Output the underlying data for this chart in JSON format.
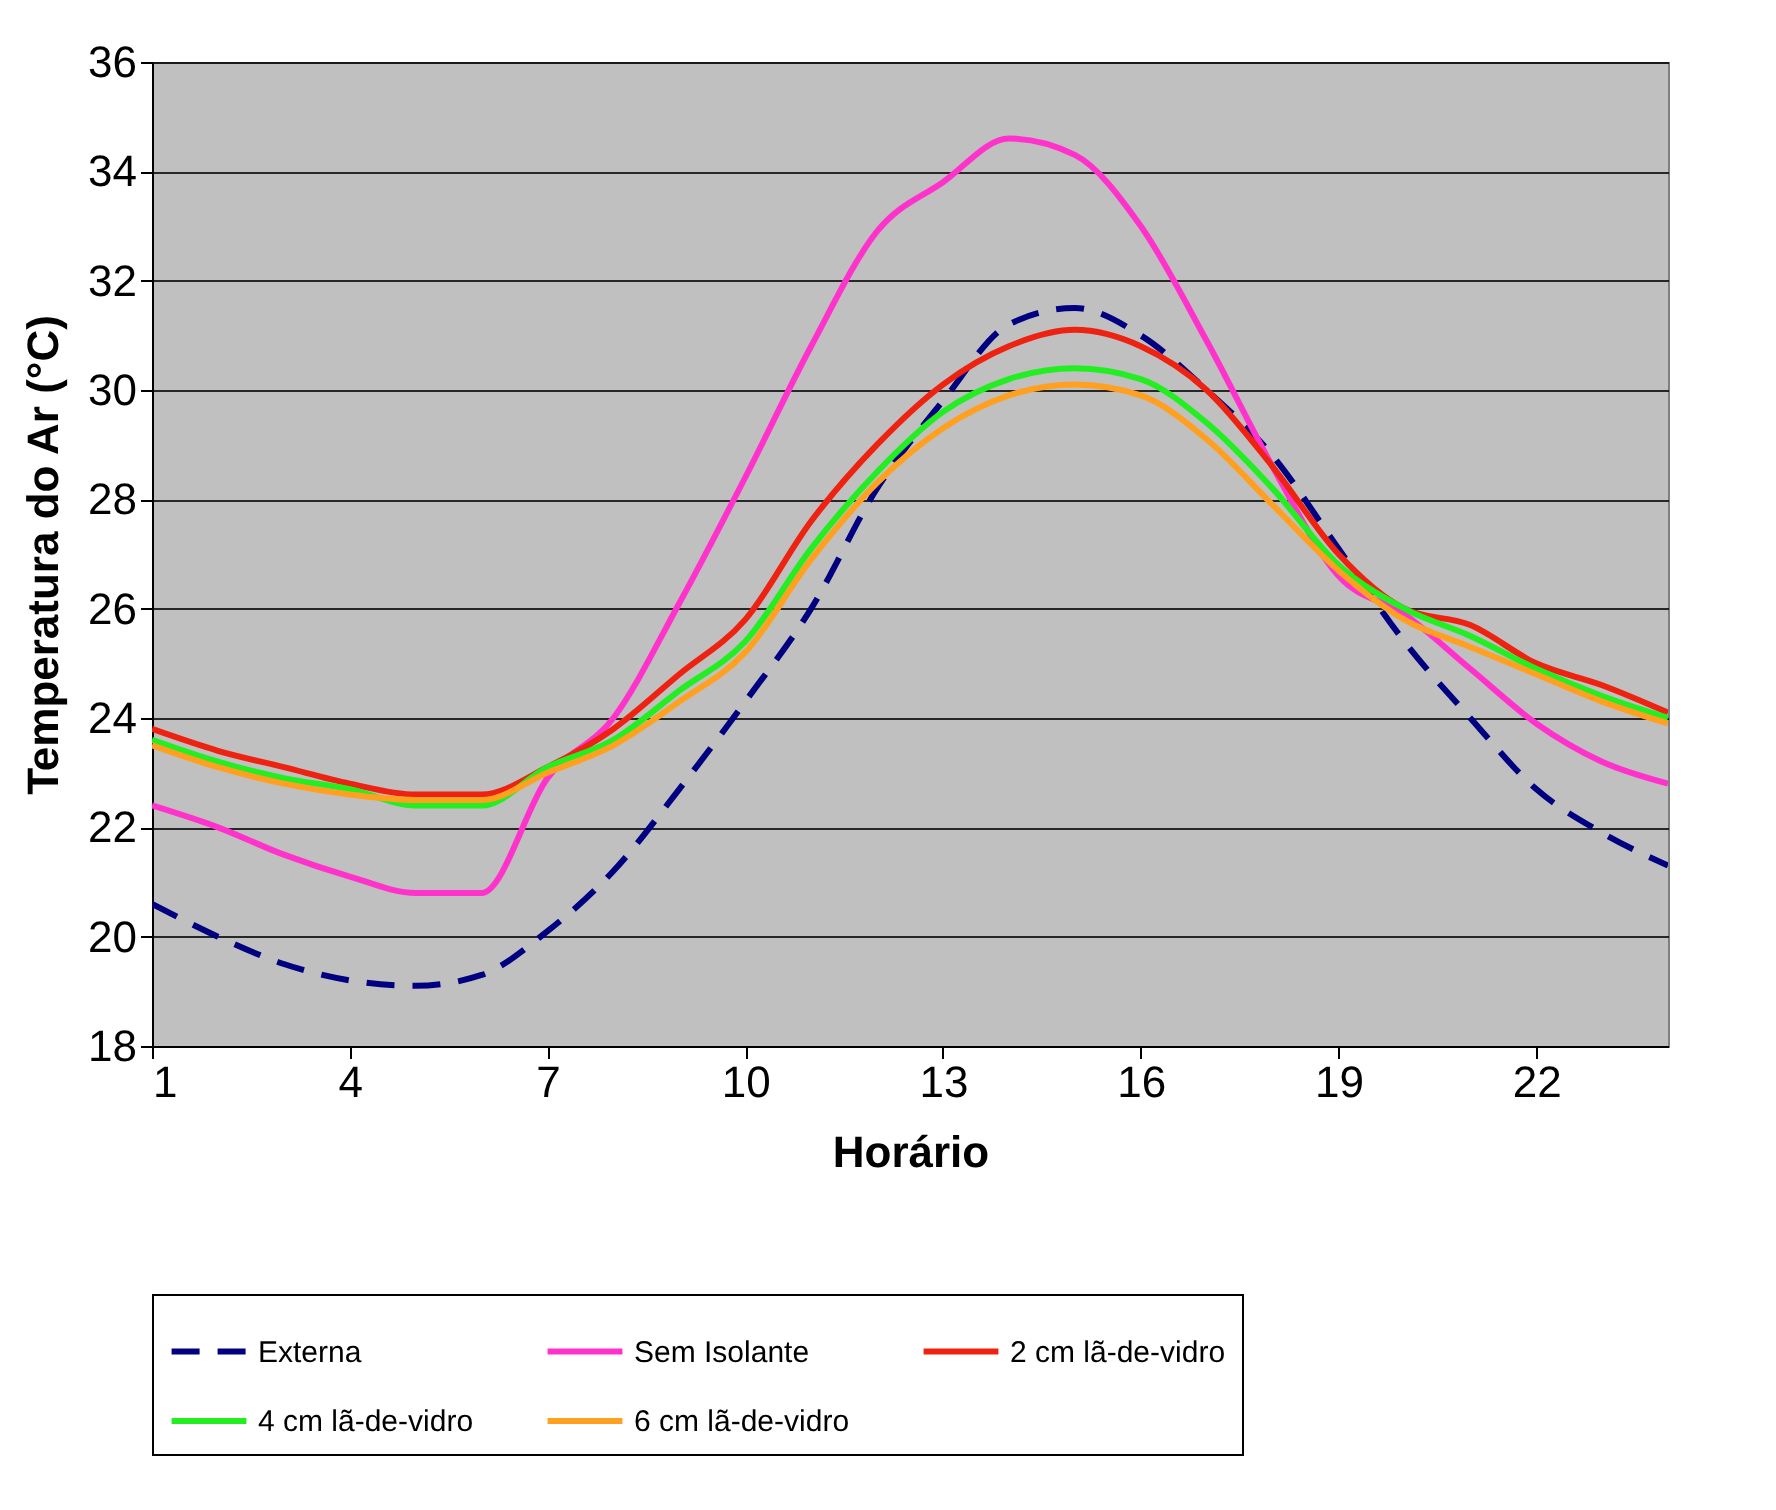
{
  "chart_data": {
    "type": "line",
    "xlabel": "Horário",
    "ylabel": "Temperatura do Ar (°C)",
    "x": [
      1,
      2,
      3,
      4,
      5,
      6,
      7,
      8,
      9,
      10,
      11,
      12,
      13,
      14,
      15,
      16,
      17,
      18,
      19,
      20,
      21,
      22,
      23,
      24
    ],
    "xlim": [
      1,
      24
    ],
    "xticks": [
      1,
      4,
      7,
      10,
      13,
      16,
      19,
      22
    ],
    "ylim": [
      18,
      36
    ],
    "yticks": [
      18,
      20,
      22,
      24,
      26,
      28,
      30,
      32,
      34,
      36
    ],
    "grid": "y",
    "legend": "bottom",
    "marker": "none",
    "series": [
      {
        "name": "Externa",
        "color": "#000080",
        "line_style": "dashed",
        "values": [
          20.6,
          20.0,
          19.5,
          19.2,
          19.1,
          19.3,
          20.1,
          21.2,
          22.7,
          24.3,
          26.0,
          28.2,
          29.8,
          31.2,
          31.5,
          31.0,
          30.0,
          28.8,
          27.1,
          25.4,
          24.0,
          22.7,
          21.9,
          21.3
        ]
      },
      {
        "name": "Sem Isolante",
        "color": "#ff33cc",
        "line_style": "solid",
        "values": [
          22.4,
          22.0,
          21.5,
          21.1,
          20.8,
          20.8,
          22.9,
          24.0,
          26.1,
          28.4,
          30.8,
          32.9,
          33.8,
          34.6,
          34.3,
          33.0,
          30.9,
          28.6,
          26.6,
          25.9,
          24.9,
          23.9,
          23.2,
          22.8
        ]
      },
      {
        "name": "2 cm lã-de-vidro",
        "color": "#ee2211",
        "line_style": "solid",
        "values": [
          23.8,
          23.4,
          23.1,
          22.8,
          22.6,
          22.6,
          23.1,
          23.8,
          24.8,
          25.8,
          27.6,
          29.0,
          30.1,
          30.8,
          31.1,
          30.8,
          30.0,
          28.6,
          27.0,
          26.0,
          25.7,
          25.0,
          24.6,
          24.1
        ]
      },
      {
        "name": "4 cm lã-de-vidro",
        "color": "#22ee22",
        "line_style": "solid",
        "values": [
          23.6,
          23.2,
          22.9,
          22.7,
          22.4,
          22.4,
          23.1,
          23.6,
          24.5,
          25.4,
          27.1,
          28.5,
          29.6,
          30.2,
          30.4,
          30.2,
          29.4,
          28.2,
          26.8,
          26.0,
          25.5,
          24.9,
          24.4,
          24.0
        ]
      },
      {
        "name": "6 cm lã-de-vidro",
        "color": "#ffa020",
        "line_style": "solid",
        "values": [
          23.5,
          23.1,
          22.8,
          22.6,
          22.5,
          22.5,
          23.0,
          23.5,
          24.3,
          25.2,
          26.9,
          28.3,
          29.3,
          29.9,
          30.1,
          29.9,
          29.1,
          27.9,
          26.7,
          25.8,
          25.3,
          24.8,
          24.3,
          23.9
        ]
      }
    ]
  }
}
